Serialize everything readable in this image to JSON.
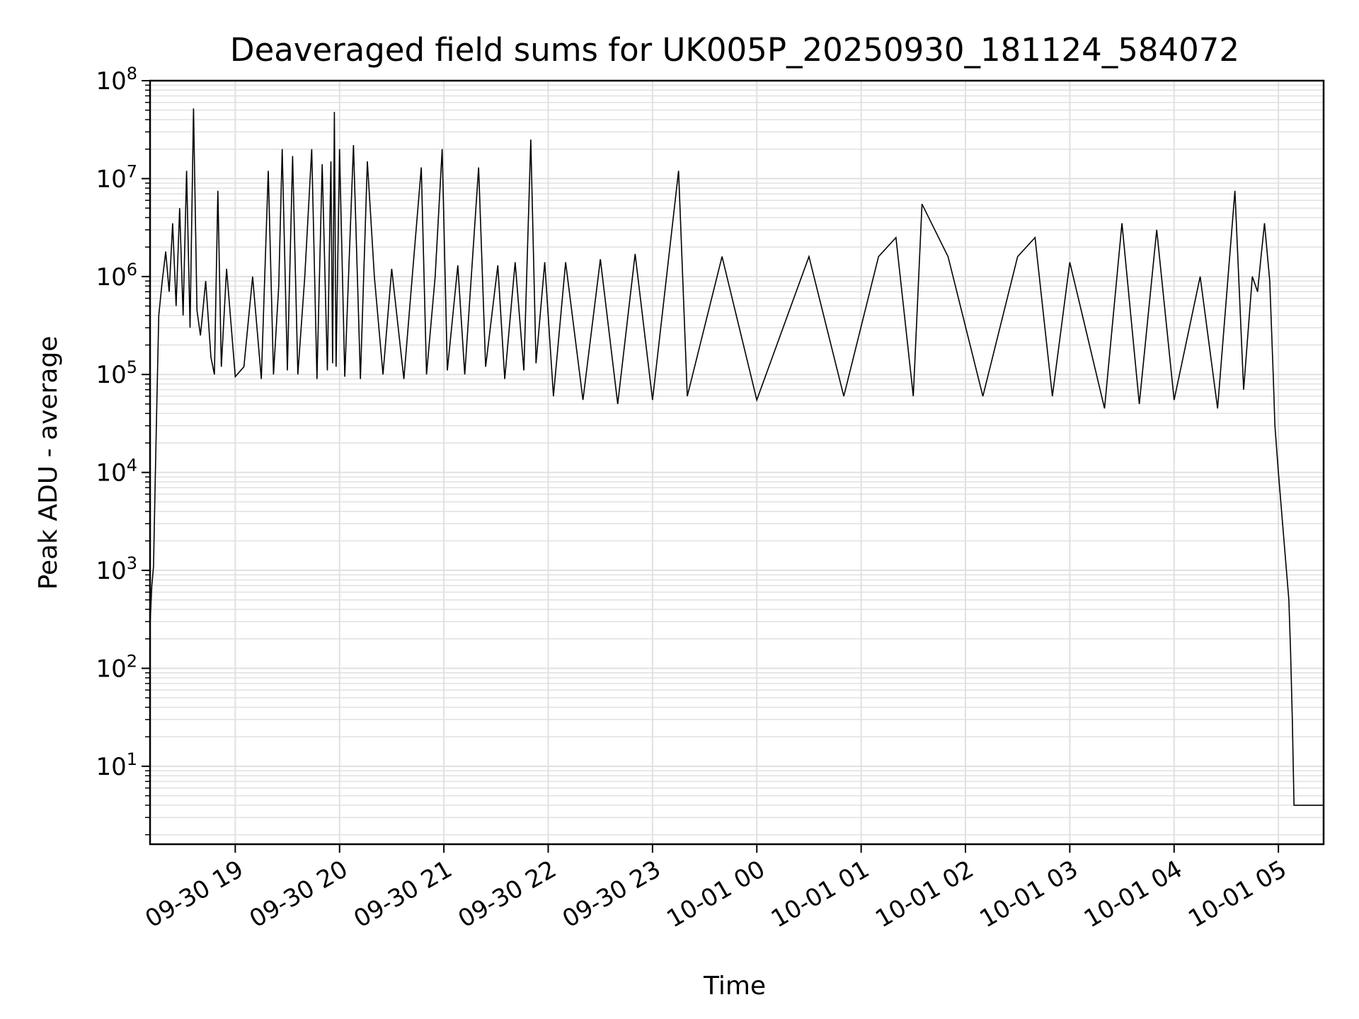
{
  "chart_data": {
    "type": "line",
    "title": "Deaveraged field sums for UK005P_20250930_181124_584072",
    "xlabel": "Time",
    "ylabel": "Peak ADU - average",
    "yscale": "log",
    "ylim": [
      1.6,
      100000000
    ],
    "xlim": [
      "2025-09-30 18:11",
      "2025-10-01 05:26"
    ],
    "grid": true,
    "line_color": "#000000",
    "grid_color": "#e0e0e0",
    "x_ticks": [
      "09-30 19",
      "09-30 20",
      "09-30 21",
      "09-30 22",
      "09-30 23",
      "10-01 00",
      "10-01 01",
      "10-01 02",
      "10-01 03",
      "10-01 04",
      "10-01 05"
    ],
    "x_tick_values": [
      "2025-09-30 19:00",
      "2025-09-30 20:00",
      "2025-09-30 21:00",
      "2025-09-30 22:00",
      "2025-09-30 23:00",
      "2025-10-01 00:00",
      "2025-10-01 01:00",
      "2025-10-01 02:00",
      "2025-10-01 03:00",
      "2025-10-01 04:00",
      "2025-10-01 05:00"
    ],
    "y_ticks": [
      {
        "value": 10,
        "base": "10",
        "exp": "1"
      },
      {
        "value": 100,
        "base": "10",
        "exp": "2"
      },
      {
        "value": 1000,
        "base": "10",
        "exp": "3"
      },
      {
        "value": 10000,
        "base": "10",
        "exp": "4"
      },
      {
        "value": 100000,
        "base": "10",
        "exp": "5"
      },
      {
        "value": 1000000,
        "base": "10",
        "exp": "6"
      },
      {
        "value": 10000000,
        "base": "10",
        "exp": "7"
      },
      {
        "value": 100000000,
        "base": "10",
        "exp": "8"
      }
    ],
    "series": [
      {
        "points": [
          [
            "2025-09-30 18:11",
            280
          ],
          [
            "2025-09-30 18:12",
            700
          ],
          [
            "2025-09-30 18:13",
            1100
          ],
          [
            "2025-09-30 18:14",
            9000
          ],
          [
            "2025-09-30 18:15",
            60000
          ],
          [
            "2025-09-30 18:16",
            400000
          ],
          [
            "2025-09-30 18:18",
            900000
          ],
          [
            "2025-09-30 18:20",
            1800000
          ],
          [
            "2025-09-30 18:22",
            700000
          ],
          [
            "2025-09-30 18:24",
            3500000
          ],
          [
            "2025-09-30 18:26",
            500000
          ],
          [
            "2025-09-30 18:28",
            5000000
          ],
          [
            "2025-09-30 18:30",
            400000
          ],
          [
            "2025-09-30 18:32",
            12000000
          ],
          [
            "2025-09-30 18:34",
            300000
          ],
          [
            "2025-09-30 18:36",
            52000000
          ],
          [
            "2025-09-30 18:38",
            450000
          ],
          [
            "2025-09-30 18:40",
            250000
          ],
          [
            "2025-09-30 18:43",
            900000
          ],
          [
            "2025-09-30 18:46",
            150000
          ],
          [
            "2025-09-30 18:48",
            100000
          ],
          [
            "2025-09-30 18:50",
            7500000
          ],
          [
            "2025-09-30 18:52",
            120000
          ],
          [
            "2025-09-30 18:55",
            1200000
          ],
          [
            "2025-09-30 19:00",
            95000
          ],
          [
            "2025-09-30 19:05",
            120000
          ],
          [
            "2025-09-30 19:10",
            1000000
          ],
          [
            "2025-09-30 19:15",
            90000
          ],
          [
            "2025-09-30 19:19",
            12000000
          ],
          [
            "2025-09-30 19:22",
            100000
          ],
          [
            "2025-09-30 19:25",
            800000
          ],
          [
            "2025-09-30 19:27",
            20000000
          ],
          [
            "2025-09-30 19:30",
            110000
          ],
          [
            "2025-09-30 19:33",
            17000000
          ],
          [
            "2025-09-30 19:36",
            100000
          ],
          [
            "2025-09-30 19:40",
            1000000
          ],
          [
            "2025-09-30 19:44",
            20000000
          ],
          [
            "2025-09-30 19:47",
            90000
          ],
          [
            "2025-09-30 19:50",
            14000000
          ],
          [
            "2025-09-30 19:53",
            110000
          ],
          [
            "2025-09-30 19:55",
            15000000
          ],
          [
            "2025-09-30 19:56",
            130000
          ],
          [
            "2025-09-30 19:57",
            48000000
          ],
          [
            "2025-09-30 19:58",
            120000
          ],
          [
            "2025-09-30 20:00",
            20000000
          ],
          [
            "2025-09-30 20:03",
            95000
          ],
          [
            "2025-09-30 20:08",
            22000000
          ],
          [
            "2025-09-30 20:12",
            90000
          ],
          [
            "2025-09-30 20:16",
            15000000
          ],
          [
            "2025-09-30 20:20",
            1000000
          ],
          [
            "2025-09-30 20:25",
            100000
          ],
          [
            "2025-09-30 20:30",
            1200000
          ],
          [
            "2025-09-30 20:37",
            90000
          ],
          [
            "2025-09-30 20:42",
            1100000
          ],
          [
            "2025-09-30 20:47",
            13000000
          ],
          [
            "2025-09-30 20:50",
            100000
          ],
          [
            "2025-09-30 20:55",
            1000000
          ],
          [
            "2025-09-30 20:59",
            20000000
          ],
          [
            "2025-09-30 21:02",
            110000
          ],
          [
            "2025-09-30 21:08",
            1300000
          ],
          [
            "2025-09-30 21:12",
            100000
          ],
          [
            "2025-09-30 21:20",
            13000000
          ],
          [
            "2025-09-30 21:24",
            120000
          ],
          [
            "2025-09-30 21:31",
            1300000
          ],
          [
            "2025-09-30 21:35",
            90000
          ],
          [
            "2025-09-30 21:41",
            1400000
          ],
          [
            "2025-09-30 21:46",
            110000
          ],
          [
            "2025-09-30 21:50",
            25000000
          ],
          [
            "2025-09-30 21:53",
            130000
          ],
          [
            "2025-09-30 21:58",
            1400000
          ],
          [
            "2025-09-30 22:03",
            60000
          ],
          [
            "2025-09-30 22:10",
            1400000
          ],
          [
            "2025-09-30 22:20",
            55000
          ],
          [
            "2025-09-30 22:30",
            1500000
          ],
          [
            "2025-09-30 22:40",
            50000
          ],
          [
            "2025-09-30 22:50",
            1700000
          ],
          [
            "2025-09-30 23:00",
            55000
          ],
          [
            "2025-09-30 23:15",
            12000000
          ],
          [
            "2025-09-30 23:20",
            60000
          ],
          [
            "2025-09-30 23:40",
            1600000
          ],
          [
            "2025-10-01 00:00",
            55000
          ],
          [
            "2025-10-01 00:30",
            1600000
          ],
          [
            "2025-10-01 00:50",
            60000
          ],
          [
            "2025-10-01 01:10",
            1600000
          ],
          [
            "2025-10-01 01:20",
            2500000
          ],
          [
            "2025-10-01 01:30",
            60000
          ],
          [
            "2025-10-01 01:35",
            5500000
          ],
          [
            "2025-10-01 01:50",
            1600000
          ],
          [
            "2025-10-01 02:10",
            60000
          ],
          [
            "2025-10-01 02:30",
            1600000
          ],
          [
            "2025-10-01 02:40",
            2500000
          ],
          [
            "2025-10-01 02:50",
            60000
          ],
          [
            "2025-10-01 03:00",
            1400000
          ],
          [
            "2025-10-01 03:20",
            45000
          ],
          [
            "2025-10-01 03:30",
            3500000
          ],
          [
            "2025-10-01 03:40",
            50000
          ],
          [
            "2025-10-01 03:50",
            3000000
          ],
          [
            "2025-10-01 04:00",
            55000
          ],
          [
            "2025-10-01 04:15",
            1000000
          ],
          [
            "2025-10-01 04:25",
            45000
          ],
          [
            "2025-10-01 04:35",
            7500000
          ],
          [
            "2025-10-01 04:40",
            70000
          ],
          [
            "2025-10-01 04:45",
            1000000
          ],
          [
            "2025-10-01 04:48",
            700000
          ],
          [
            "2025-10-01 04:50",
            1600000
          ],
          [
            "2025-10-01 04:52",
            3500000
          ],
          [
            "2025-10-01 04:55",
            900000
          ],
          [
            "2025-10-01 04:57",
            100000
          ],
          [
            "2025-10-01 04:58",
            30000
          ],
          [
            "2025-10-01 05:00",
            10000
          ],
          [
            "2025-10-01 05:06",
            500
          ],
          [
            "2025-10-01 05:07",
            150
          ],
          [
            "2025-10-01 05:08",
            30
          ],
          [
            "2025-10-01 05:09",
            4
          ],
          [
            "2025-10-01 05:26",
            4
          ]
        ]
      }
    ]
  }
}
